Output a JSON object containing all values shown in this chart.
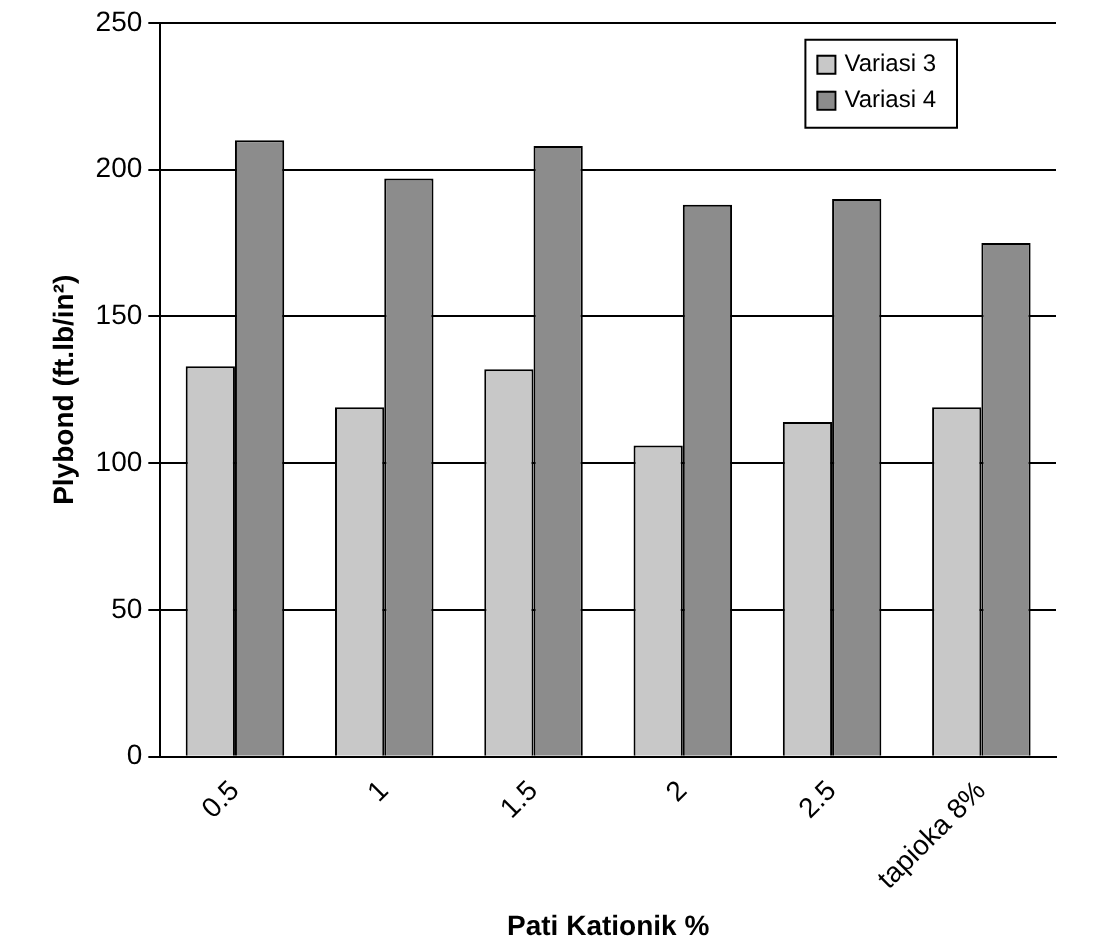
{
  "chart_data": {
    "type": "bar",
    "xlabel": "Pati Kationik %",
    "ylabel": "Plybond (ft.lb/in²)",
    "categories": [
      "0.5",
      "1",
      "1.5",
      "2",
      "2.5",
      "tapioka 8%"
    ],
    "series": [
      {
        "name": "Variasi 3",
        "color": "#c8c8c8",
        "values": [
          133,
          119,
          132,
          106,
          114,
          119
        ]
      },
      {
        "name": "Variasi 4",
        "color": "#8c8c8c",
        "values": [
          210,
          197,
          208,
          188,
          190,
          175
        ]
      }
    ],
    "ylim": [
      0,
      250
    ],
    "yticks": [
      0,
      50,
      100,
      150,
      200,
      250
    ],
    "grid": "y",
    "legend": "top right"
  }
}
